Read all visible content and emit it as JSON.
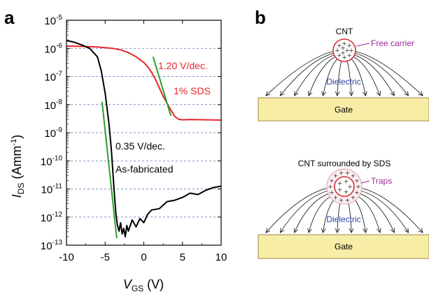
{
  "figure": {
    "panel_a_label": "a",
    "panel_b_label": "b"
  },
  "chart_data": {
    "type": "line",
    "xlabel": "V",
    "xlabel_sub": "GS",
    "xlabel_unit": " (V)",
    "ylabel": "I",
    "ylabel_sub": "DS",
    "ylabel_unit": " (Amm",
    "ylabel_sup": "-1",
    "ylabel_close": ")",
    "xlim": [
      -10,
      10
    ],
    "ylim_log10": [
      -13,
      -5
    ],
    "y_scale": "log",
    "x_ticks": [
      "-10",
      "-5",
      "0",
      "5",
      "10"
    ],
    "y_tick_exponents": [
      "-13",
      "-12",
      "-11",
      "-10",
      "-9",
      "-8",
      "-7",
      "-6",
      "-5"
    ],
    "y_tick_base": "10",
    "grid": "horizontal dashed",
    "series": [
      {
        "name": "1% SDS",
        "color": "#e8262a",
        "x": [
          -10,
          -8,
          -6,
          -4,
          -3,
          -2,
          -1,
          0,
          0.5,
          1,
          1.5,
          2,
          2.5,
          3,
          3.5,
          4,
          4.5,
          5,
          6,
          8,
          10
        ],
        "log10_y": [
          -5.92,
          -5.93,
          -5.95,
          -6.0,
          -6.05,
          -6.15,
          -6.3,
          -6.5,
          -6.65,
          -6.85,
          -7.1,
          -7.4,
          -7.7,
          -7.95,
          -8.2,
          -8.42,
          -8.52,
          -8.54,
          -8.53,
          -8.54,
          -8.55
        ]
      },
      {
        "name": "As-fabricated",
        "color": "#000000",
        "x": [
          -10,
          -9,
          -8,
          -7,
          -6,
          -5.5,
          -5,
          -4.5,
          -4.2,
          -4,
          -3.8,
          -3.6,
          -3.4,
          -3.2,
          -3,
          -2.8,
          -2.6,
          -2.4,
          -2.2,
          -2,
          -1.5,
          -1,
          -0.5,
          0,
          0.5,
          1,
          2,
          3,
          4,
          5,
          6,
          7,
          8,
          9,
          10
        ],
        "log10_y": [
          -5.72,
          -5.78,
          -5.88,
          -6.0,
          -6.3,
          -6.8,
          -7.6,
          -8.7,
          -9.6,
          -10.4,
          -11.2,
          -11.9,
          -12.3,
          -12.5,
          -12.2,
          -12.6,
          -12.4,
          -12.7,
          -12.3,
          -12.5,
          -12.1,
          -12.35,
          -12.05,
          -12.2,
          -11.9,
          -11.75,
          -11.7,
          -11.45,
          -11.4,
          -11.3,
          -11.15,
          -11.2,
          -11.05,
          -10.95,
          -10.9
        ]
      }
    ],
    "fit_lines": [
      {
        "x": [
          -5.4,
          -3.5
        ],
        "log10_y": [
          -7.9,
          -12.75
        ],
        "color": "#2aa02a"
      },
      {
        "x": [
          1.2,
          3.5
        ],
        "log10_y": [
          -6.3,
          -8.4
        ],
        "color": "#2aa02a"
      }
    ],
    "annotations": {
      "red_slope": "1.20 V/dec.",
      "red_label": "1% SDS",
      "black_slope": "0.35 V/dec.",
      "black_label": "As-fabricated"
    }
  },
  "diagram_b": {
    "top": {
      "title": "CNT",
      "label_pointer": "Free carrier",
      "dielectric_label": "Dielectric",
      "gate_label": "Gate"
    },
    "bottom": {
      "title": "CNT surrounded by SDS",
      "label_pointer": "Traps",
      "dielectric_label": "Dielectric",
      "gate_label": "Gate"
    },
    "colors": {
      "gate_fill": "#f7eda6",
      "gate_stroke": "#a08a4a",
      "cnt_ring": "#d0303a",
      "sds_ring": "#e8a8b0",
      "pointer": "#9b2a9b",
      "dielectric": "#2a3ea8"
    }
  }
}
